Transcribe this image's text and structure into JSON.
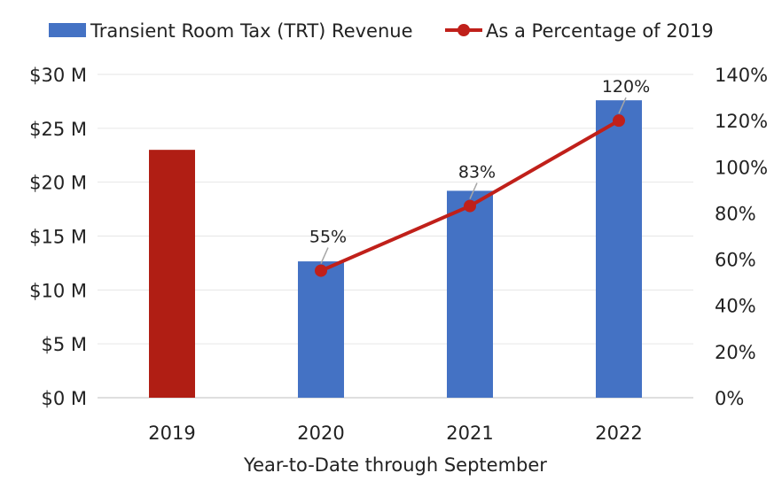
{
  "chart_data": {
    "type": "bar",
    "categories": [
      "2019",
      "2020",
      "2021",
      "2022"
    ],
    "xlabel": "Year-to-Date through September",
    "series": [
      {
        "name": "Transient Room Tax (TRT) Revenue",
        "axis": "left",
        "type": "bar",
        "values": [
          23.0,
          12.65,
          19.2,
          27.6
        ],
        "colors": [
          "#B01E14",
          "#4472C4",
          "#4472C4",
          "#4472C4"
        ]
      },
      {
        "name": "As a Percentage of 2019",
        "axis": "right",
        "type": "line",
        "values": [
          null,
          55,
          83,
          120
        ],
        "labels": [
          "",
          "55%",
          "83%",
          "120%"
        ],
        "color": "#C0201A"
      }
    ],
    "y_left": {
      "ylim": [
        0,
        30
      ],
      "ticks": [
        "$0 M",
        "$5 M",
        "$10 M",
        "$15 M",
        "$20 M",
        "$25 M",
        "$30 M"
      ]
    },
    "y_right": {
      "ylim": [
        0,
        140
      ],
      "ticks": [
        "0%",
        "20%",
        "40%",
        "60%",
        "80%",
        "100%",
        "120%",
        "140%"
      ]
    },
    "grid": true,
    "legend": "top"
  }
}
